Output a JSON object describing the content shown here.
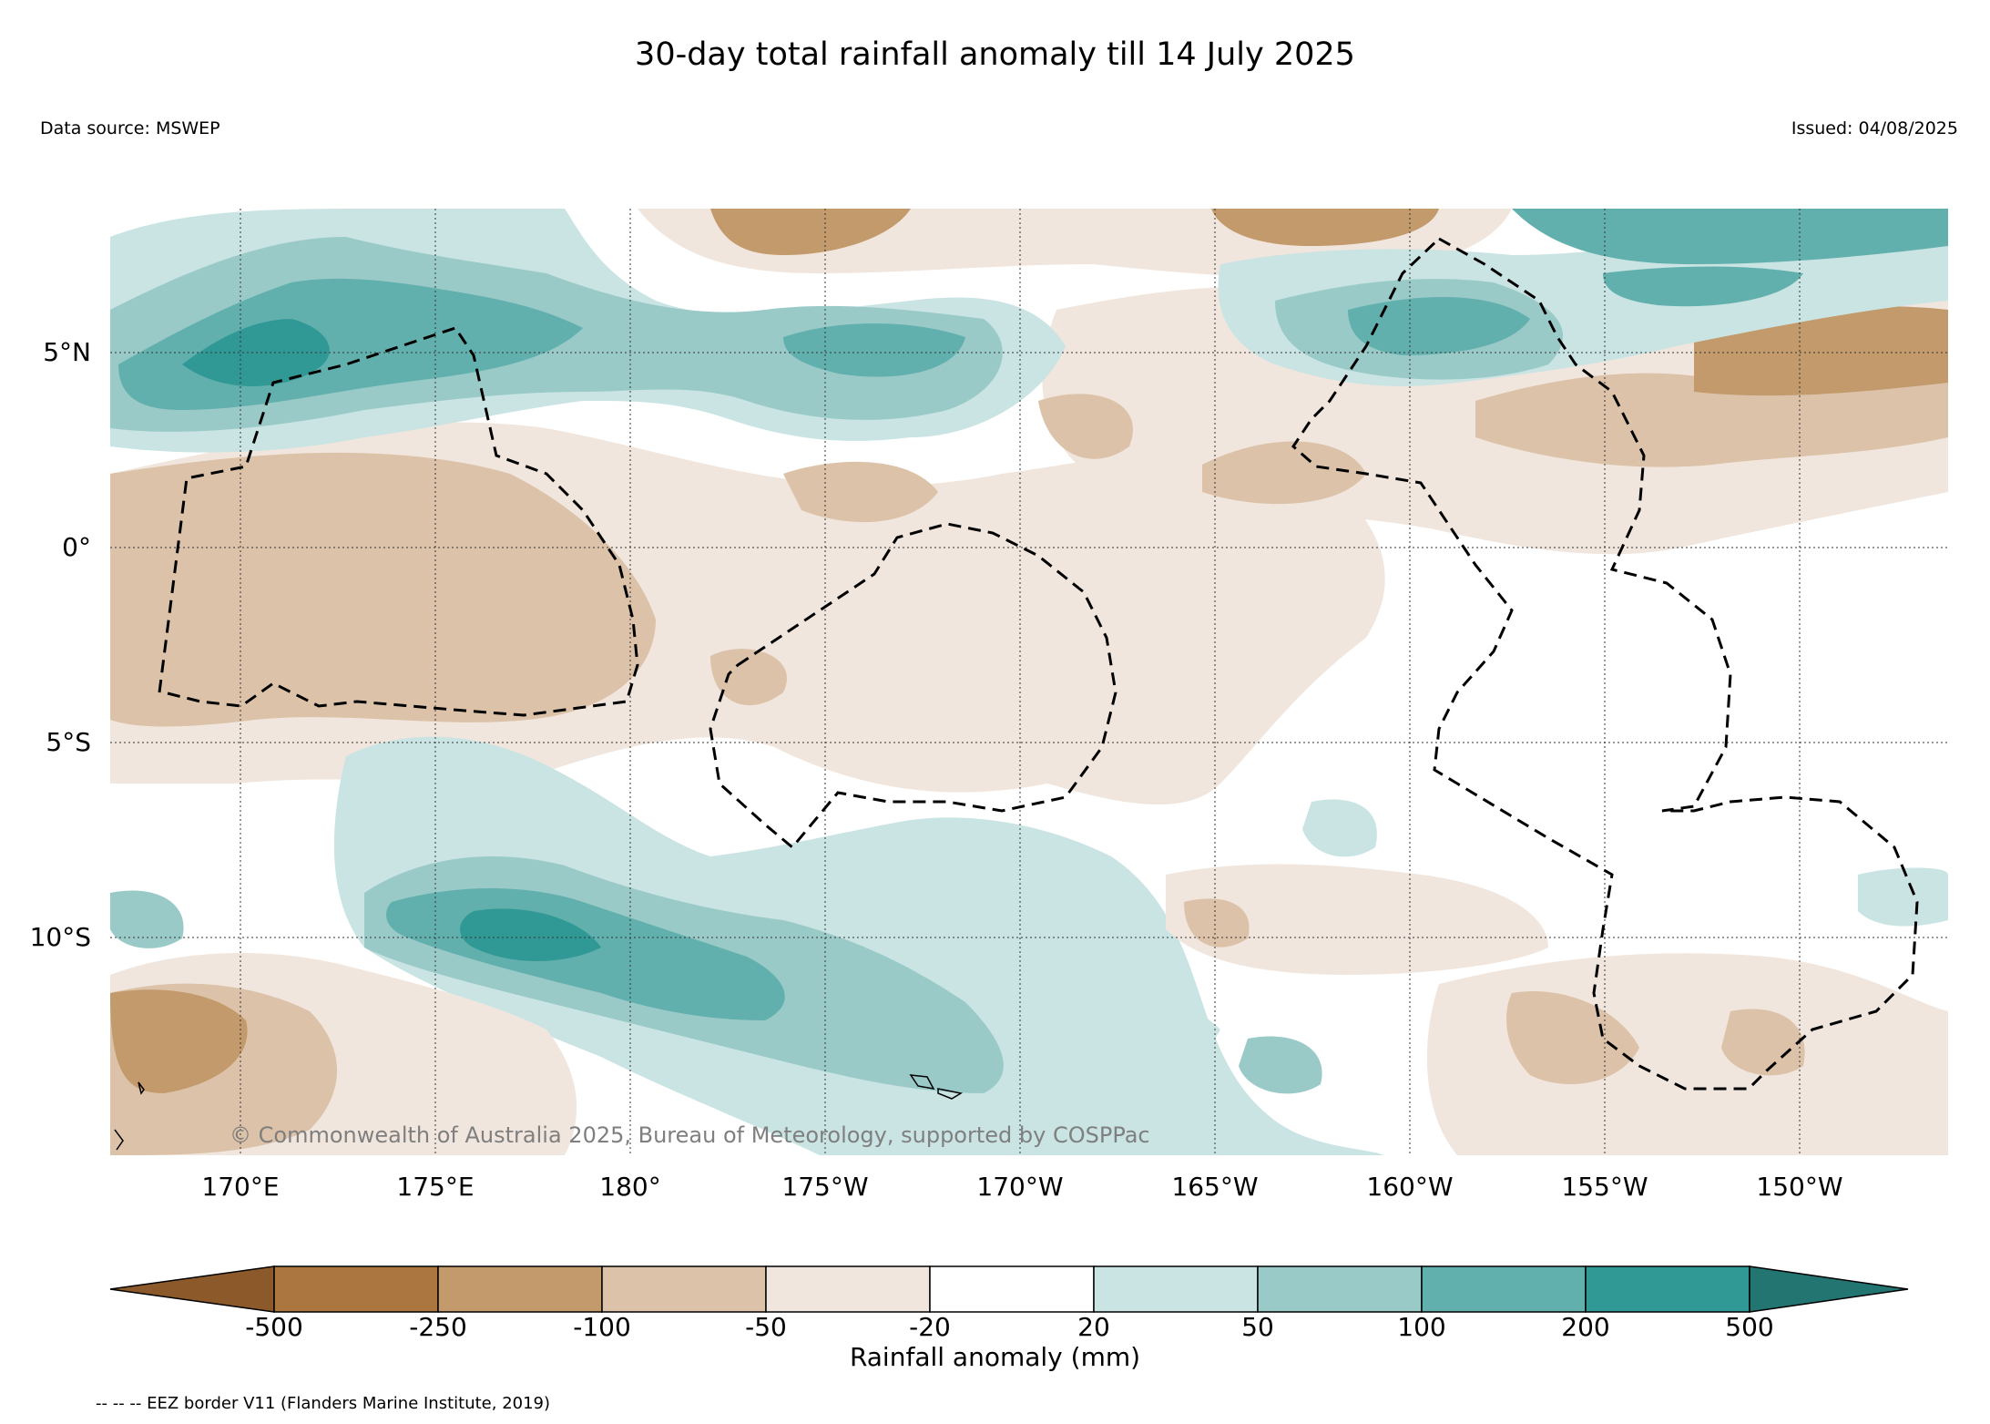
{
  "title": "30-day total rainfall anomaly till 14 July 2025",
  "data_source": "Data source: MSWEP",
  "issued": "Issued: 04/08/2025",
  "copyright": "© Commonwealth of Australia 2025, Bureau of Meteorology, supported by COSPPac",
  "map": {
    "latitude_labels": [
      "5°N",
      "0°",
      "5°S",
      "10°S"
    ],
    "longitude_labels": [
      "170°E",
      "175°E",
      "180°",
      "175°W",
      "170°W",
      "165°W",
      "160°W",
      "155°W",
      "150°W"
    ],
    "extent": {
      "lon_min": 166.6,
      "lon_max": 213.9,
      "lat_min": -15.6,
      "lat_max": 8.8
    }
  },
  "colorbar": {
    "title": "Rainfall anomaly (mm)",
    "ticks": [
      "-500",
      "-250",
      "-100",
      "-50",
      "-20",
      "20",
      "50",
      "100",
      "200",
      "500"
    ],
    "colors": [
      "#8c5a2a",
      "#ab7640",
      "#c29a6c",
      "#dcc2a8",
      "#f1e6dd",
      "#ffffff",
      "#c9e4e3",
      "#9acac8",
      "#62b0ae",
      "#319995",
      "#237572"
    ]
  },
  "legend_note": "-- -- -- EEZ border V11 (Flanders Marine Institute, 2019)"
}
